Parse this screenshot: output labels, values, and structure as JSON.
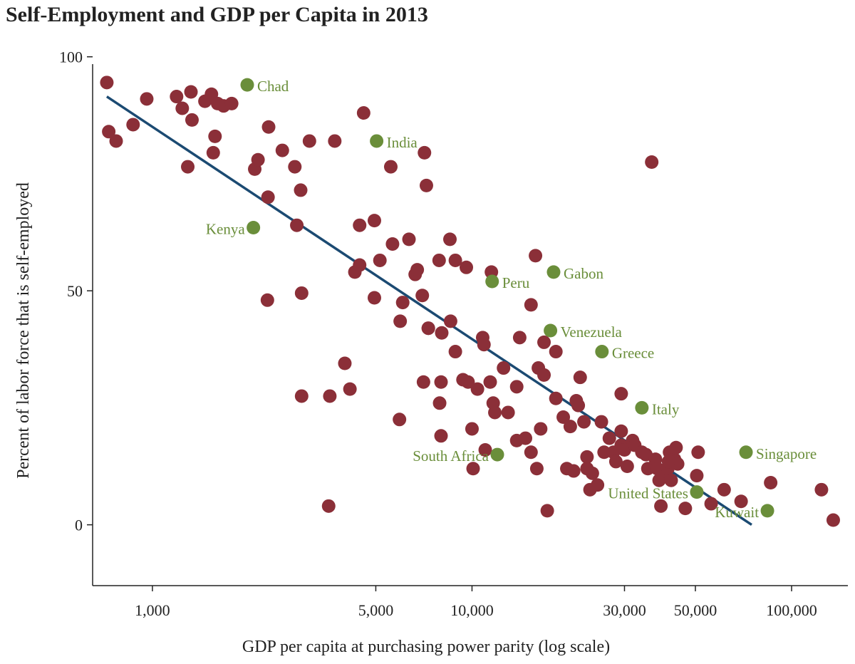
{
  "chart_data": {
    "type": "scatter",
    "title": "Self-Employment and GDP per Capita in 2013",
    "xlabel": "GDP per capita at purchasing power parity (log scale)",
    "ylabel": "Percent of labor force that is self-employed",
    "x_scale": "log",
    "xlim": [
      650,
      150000
    ],
    "ylim": [
      -13,
      103
    ],
    "x_ticks": [
      1000,
      5000,
      10000,
      30000,
      50000,
      100000
    ],
    "x_tick_labels": [
      "1,000",
      "5,000",
      "10,000",
      "30,000",
      "50,000",
      "100,000"
    ],
    "y_ticks": [
      0,
      50,
      100
    ],
    "y_tick_labels": [
      "0",
      "50",
      "100"
    ],
    "colors": {
      "points": "#8b2f38",
      "highlight": "#6a8e3a",
      "fit_line": "#1b4a72",
      "axis": "#222222"
    },
    "trend_line": {
      "x": [
        720,
        75000
      ],
      "y": [
        91.5,
        0
      ]
    },
    "series": [
      {
        "points": [
          [
            720,
            94.5
          ],
          [
            730,
            84
          ],
          [
            770,
            82
          ],
          [
            870,
            85.5
          ],
          [
            960,
            91
          ],
          [
            1190,
            91.5
          ],
          [
            1240,
            89
          ],
          [
            1290,
            76.5
          ],
          [
            1320,
            92.5
          ],
          [
            1330,
            86.5
          ],
          [
            1460,
            90.5
          ],
          [
            1530,
            92
          ],
          [
            1550,
            79.5
          ],
          [
            1570,
            83
          ],
          [
            1600,
            90
          ],
          [
            1670,
            89.5
          ],
          [
            1770,
            90
          ],
          [
            2090,
            76
          ],
          [
            2140,
            78
          ],
          [
            2310,
            85
          ],
          [
            2300,
            70
          ],
          [
            2290,
            48
          ],
          [
            2550,
            80
          ],
          [
            2790,
            76.5
          ],
          [
            2910,
            71.5
          ],
          [
            3100,
            82
          ],
          [
            2830,
            64
          ],
          [
            2930,
            49.5
          ],
          [
            2930,
            27.5
          ],
          [
            3720,
            82
          ],
          [
            3590,
            27.5
          ],
          [
            3560,
            4
          ],
          [
            4000,
            34.5
          ],
          [
            4150,
            29
          ],
          [
            4300,
            54
          ],
          [
            4450,
            55.5
          ],
          [
            4450,
            64
          ],
          [
            4580,
            88
          ],
          [
            4950,
            65
          ],
          [
            4950,
            48.5
          ],
          [
            5150,
            56.5
          ],
          [
            5570,
            76.5
          ],
          [
            5640,
            60
          ],
          [
            5960,
            43.5
          ],
          [
            6070,
            47.5
          ],
          [
            5930,
            22.5
          ],
          [
            6350,
            61
          ],
          [
            6640,
            53.5
          ],
          [
            6740,
            54.5
          ],
          [
            6990,
            49
          ],
          [
            7100,
            79.5
          ],
          [
            7200,
            72.5
          ],
          [
            7300,
            42
          ],
          [
            7050,
            30.5
          ],
          [
            7300,
            42
          ],
          [
            7890,
            56.5
          ],
          [
            8040,
            41
          ],
          [
            7920,
            26
          ],
          [
            8000,
            19
          ],
          [
            8000,
            30.5
          ],
          [
            8530,
            61
          ],
          [
            8570,
            43.5
          ],
          [
            8870,
            56.5
          ],
          [
            8870,
            37
          ],
          [
            9370,
            31
          ],
          [
            9600,
            55
          ],
          [
            9720,
            30.5
          ],
          [
            10000,
            20.5
          ],
          [
            10080,
            12
          ],
          [
            10400,
            29
          ],
          [
            10800,
            40
          ],
          [
            10900,
            38.5
          ],
          [
            11000,
            16
          ],
          [
            11400,
            30.5
          ],
          [
            11650,
            26
          ],
          [
            11790,
            24
          ],
          [
            11500,
            54
          ],
          [
            12550,
            33.5
          ],
          [
            12970,
            24
          ],
          [
            13800,
            18
          ],
          [
            13800,
            29.5
          ],
          [
            14100,
            40
          ],
          [
            14700,
            18.5
          ],
          [
            15300,
            15.5
          ],
          [
            15300,
            47
          ],
          [
            15950,
            12
          ],
          [
            15800,
            57.5
          ],
          [
            16130,
            33.5
          ],
          [
            16400,
            20.5
          ],
          [
            16800,
            39
          ],
          [
            16800,
            32
          ],
          [
            17200,
            3
          ],
          [
            18300,
            27
          ],
          [
            18300,
            37
          ],
          [
            19300,
            23
          ],
          [
            19800,
            12
          ],
          [
            20300,
            21
          ],
          [
            20800,
            11.5
          ],
          [
            21200,
            26.5
          ],
          [
            21800,
            31.5
          ],
          [
            21500,
            25.5
          ],
          [
            22400,
            22
          ],
          [
            22900,
            14.5
          ],
          [
            22900,
            12
          ],
          [
            23400,
            7.5
          ],
          [
            23800,
            11
          ],
          [
            24700,
            8.5
          ],
          [
            25400,
            22
          ],
          [
            25900,
            15.5
          ],
          [
            26900,
            18.5
          ],
          [
            27700,
            15.5
          ],
          [
            28200,
            13.5
          ],
          [
            29300,
            20
          ],
          [
            29300,
            17
          ],
          [
            29300,
            28
          ],
          [
            30000,
            16
          ],
          [
            30600,
            12.5
          ],
          [
            31800,
            18
          ],
          [
            32300,
            17
          ],
          [
            34000,
            15.5
          ],
          [
            35000,
            15
          ],
          [
            36500,
            77.5
          ],
          [
            35500,
            12
          ],
          [
            37500,
            14
          ],
          [
            38000,
            12
          ],
          [
            38500,
            9.5
          ],
          [
            39000,
            4
          ],
          [
            39500,
            10.5
          ],
          [
            40000,
            11.5
          ],
          [
            41000,
            12
          ],
          [
            41500,
            15.5
          ],
          [
            42000,
            9.5
          ],
          [
            43000,
            14
          ],
          [
            44000,
            13
          ],
          [
            41200,
            13.5
          ],
          [
            43500,
            16.5
          ],
          [
            46500,
            3.5
          ],
          [
            50500,
            10.5
          ],
          [
            51000,
            15.5
          ],
          [
            56000,
            4.5
          ],
          [
            61500,
            7.5
          ],
          [
            69500,
            5
          ],
          [
            86000,
            9
          ],
          [
            124000,
            7.5
          ],
          [
            135000,
            1
          ]
        ]
      }
    ],
    "highlights": [
      {
        "label": "Chad",
        "x": 1980,
        "y": 94,
        "label_side": "right"
      },
      {
        "label": "India",
        "x": 5030,
        "y": 82,
        "label_side": "right"
      },
      {
        "label": "Kenya",
        "x": 2070,
        "y": 63.5,
        "label_side": "left"
      },
      {
        "label": "Peru",
        "x": 11560,
        "y": 52,
        "label_side": "right"
      },
      {
        "label": "Gabon",
        "x": 18000,
        "y": 54,
        "label_side": "right"
      },
      {
        "label": "Venezuela",
        "x": 17600,
        "y": 41.5,
        "label_side": "right"
      },
      {
        "label": "Greece",
        "x": 25500,
        "y": 37,
        "label_side": "right"
      },
      {
        "label": "Italy",
        "x": 34000,
        "y": 25,
        "label_side": "right"
      },
      {
        "label": "South Africa",
        "x": 12000,
        "y": 15,
        "label_side": "left"
      },
      {
        "label": "Singapore",
        "x": 72000,
        "y": 15.5,
        "label_side": "right"
      },
      {
        "label": "United States",
        "x": 50500,
        "y": 7,
        "label_side": "left"
      },
      {
        "label": "Kuwait",
        "x": 84000,
        "y": 3,
        "label_side": "left"
      }
    ]
  }
}
